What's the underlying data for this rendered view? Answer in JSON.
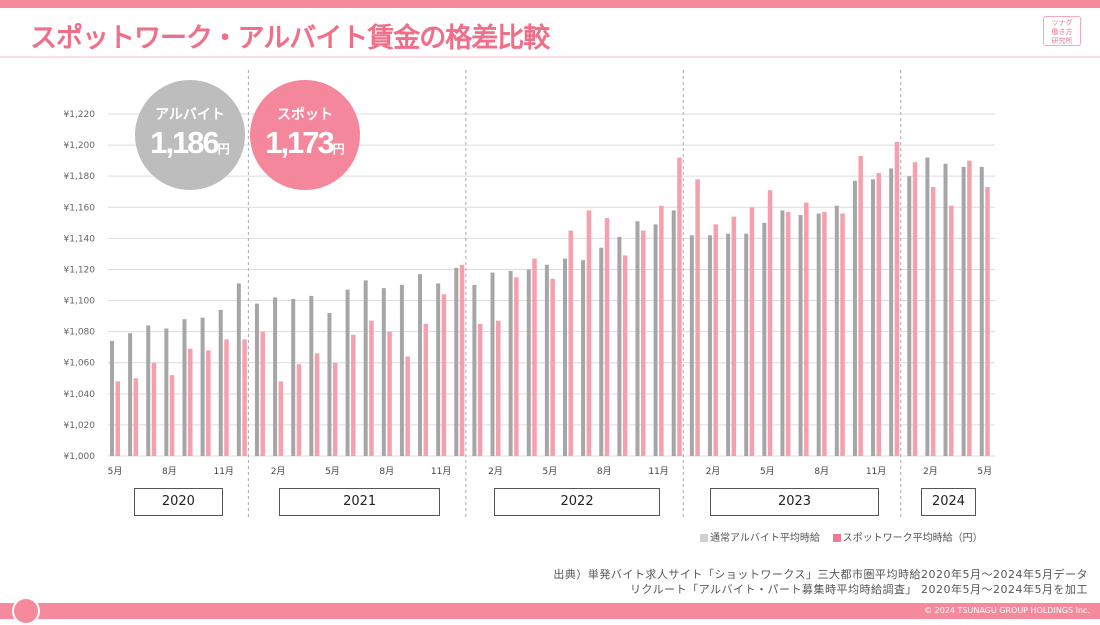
{
  "header": {
    "title": "スポットワーク・アルバイト賃金の格差比較",
    "logo_lines": [
      "ツナグ",
      "働き方",
      "研究所"
    ]
  },
  "callouts": {
    "arubaito": {
      "label": "アルバイト",
      "value": "1,186",
      "unit": "円"
    },
    "spot": {
      "label": "スポット",
      "value": "1,173",
      "unit": "円"
    }
  },
  "chart_data": {
    "type": "bar",
    "title": "スポットワーク・アルバイト賃金の格差比較",
    "xlabel": "",
    "ylabel": "",
    "ylim": [
      1000,
      1220
    ],
    "y_ticks": [
      "¥1,000",
      "¥1,020",
      "¥1,040",
      "¥1,060",
      "¥1,080",
      "¥1,100",
      "¥1,120",
      "¥1,140",
      "¥1,160",
      "¥1,180",
      "¥1,200",
      "¥1,220"
    ],
    "y_tick_values": [
      1000,
      1020,
      1040,
      1060,
      1080,
      1100,
      1120,
      1140,
      1160,
      1180,
      1200,
      1220
    ],
    "grid": true,
    "legend_position": "bottom-right",
    "categories": [
      "2020-05",
      "2020-06",
      "2020-07",
      "2020-08",
      "2020-09",
      "2020-10",
      "2020-11",
      "2020-12",
      "2021-01",
      "2021-02",
      "2021-03",
      "2021-04",
      "2021-05",
      "2021-06",
      "2021-07",
      "2021-08",
      "2021-09",
      "2021-10",
      "2021-11",
      "2021-12",
      "2022-01",
      "2022-02",
      "2022-03",
      "2022-04",
      "2022-05",
      "2022-06",
      "2022-07",
      "2022-08",
      "2022-09",
      "2022-10",
      "2022-11",
      "2022-12",
      "2023-01",
      "2023-02",
      "2023-03",
      "2023-04",
      "2023-05",
      "2023-06",
      "2023-07",
      "2023-08",
      "2023-09",
      "2023-10",
      "2023-11",
      "2023-12",
      "2024-01",
      "2024-02",
      "2024-03",
      "2024-04",
      "2024-05"
    ],
    "x_tick_labels": [
      "5月",
      "",
      "",
      "8月",
      "",
      "",
      "11月",
      "",
      "",
      "2月",
      "",
      "",
      "5月",
      "",
      "",
      "8月",
      "",
      "",
      "11月",
      "",
      "",
      "2月",
      "",
      "",
      "5月",
      "",
      "",
      "8月",
      "",
      "",
      "11月",
      "",
      "",
      "2月",
      "",
      "",
      "5月",
      "",
      "",
      "8月",
      "",
      "",
      "11月",
      "",
      "",
      "2月",
      "",
      "",
      "5月"
    ],
    "years": [
      {
        "label": "2020",
        "start": 0,
        "end": 7
      },
      {
        "label": "2021",
        "start": 8,
        "end": 19
      },
      {
        "label": "2022",
        "start": 20,
        "end": 31
      },
      {
        "label": "2023",
        "start": 32,
        "end": 43
      },
      {
        "label": "2024",
        "start": 44,
        "end": 48
      }
    ],
    "series": [
      {
        "name": "通常アルバイト平均時給",
        "color": "#a6a6a6",
        "values": [
          1074,
          1079,
          1084,
          1082,
          1088,
          1089,
          1094,
          1111,
          1098,
          1102,
          1101,
          1103,
          1092,
          1107,
          1113,
          1108,
          1110,
          1117,
          1111,
          1121,
          1110,
          1118,
          1119,
          1120,
          1123,
          1127,
          1126,
          1134,
          1141,
          1151,
          1149,
          1158,
          1142,
          1142,
          1143,
          1143,
          1150,
          1158,
          1155,
          1156,
          1161,
          1177,
          1178,
          1185,
          1180,
          1192,
          1188,
          1186,
          1186
        ]
      },
      {
        "name": "スポットワーク平均時給（円）",
        "color": "#f5a0ae",
        "values": [
          1048,
          1050,
          1060,
          1052,
          1069,
          1068,
          1075,
          1075,
          1080,
          1048,
          1059,
          1066,
          1060,
          1078,
          1087,
          1080,
          1064,
          1085,
          1104,
          1123,
          1085,
          1087,
          1115,
          1127,
          1114,
          1145,
          1158,
          1153,
          1129,
          1145,
          1161,
          1192,
          1178,
          1149,
          1154,
          1160,
          1171,
          1157,
          1163,
          1157,
          1156,
          1193,
          1182,
          1202,
          1189,
          1173,
          1161,
          1190,
          1173
        ]
      }
    ]
  },
  "source": {
    "line1": "出典）単発バイト求人サイト「ショットワークス」三大都市圏平均時給2020年5月～2024年5月データ",
    "line2": "リクルート「アルバイト・パート募集時平均時給調査」 2020年5月～2024年5月を加工"
  },
  "footer": {
    "copyright": "© 2024 TSUNAGU GROUP HOLDINGS Inc."
  }
}
